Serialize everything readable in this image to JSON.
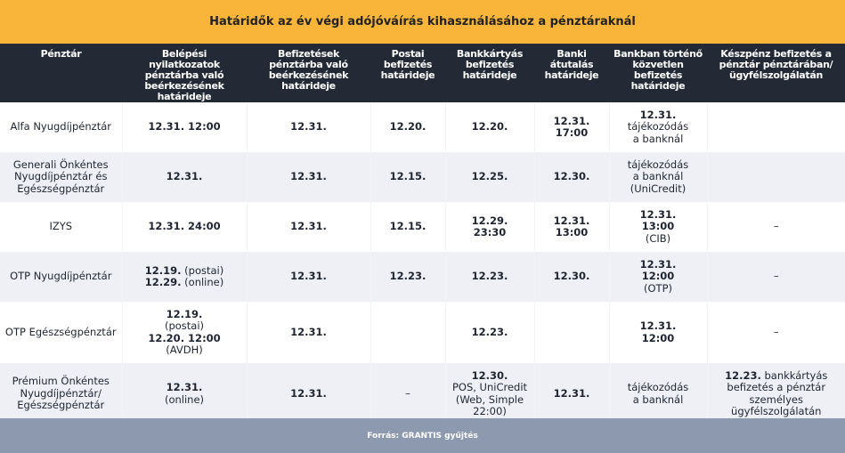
{
  "title": "Határidők az év végi adójóváírás kihasználásához a pénztáraknál",
  "headers": [
    "Pénztár",
    "Belépési nyilatkozatok pénztárba való beérkezésének határideje",
    "Befizetések pénztárba való beérkezésének határideje",
    "Postai befizetés határideje",
    "Bankkártyás befizetés határideje",
    "Banki átutalás határideje",
    "Bankban történő közvetlen befizetés határideje",
    "Készpénz befizetés a pénztár pénztárában/ ügyfélszolgálatán"
  ],
  "rows": [
    {
      "name": [
        "Alfa Nyugdíjpénztár"
      ],
      "entry": [
        "12.31. 12:00"
      ],
      "payment": "12.31.",
      "postal": "12.20.",
      "card": [
        "12.20."
      ],
      "transfer": [
        "12.31. 17:00"
      ],
      "bank": [
        "12.31.",
        "tájékozódás",
        "a banknál"
      ],
      "cash": [
        ""
      ]
    },
    {
      "name": [
        "Generali Önkéntes",
        "Nyugdíjpénztár és",
        "Egészségpénztár"
      ],
      "entry": [
        "12.31."
      ],
      "payment": "12.31.",
      "postal": "12.15.",
      "card": [
        "12.25."
      ],
      "transfer": [
        "12.30."
      ],
      "bank": [
        "tájékozódás",
        "a banknál",
        "(UniCredit)"
      ],
      "cash": [
        ""
      ]
    },
    {
      "name": [
        "IZYS"
      ],
      "entry": [
        "12.31. 24:00"
      ],
      "payment": "12.31.",
      "postal": "12.15.",
      "card": [
        "12.29.",
        "23:30"
      ],
      "transfer": [
        "12.31.",
        "13:00"
      ],
      "bank": [
        "12.31.",
        "13:00",
        "(CIB)"
      ],
      "cash": [
        "–"
      ]
    },
    {
      "name": [
        "OTP Nyugdíjpénztár"
      ],
      "entry": [
        "12.19. (postai)",
        "12.29. (online)"
      ],
      "payment": "12.31.",
      "postal": "12.23.",
      "card": [
        "12.23."
      ],
      "transfer": [
        "12.30."
      ],
      "bank": [
        "12.31.",
        "12:00",
        "(OTP)"
      ],
      "cash": [
        "–"
      ]
    },
    {
      "name": [
        "OTP Egészségpénztár"
      ],
      "entry": [
        "12.19.",
        "(postai)",
        "12.20. 12:00",
        "(AVDH)"
      ],
      "payment": "12.31.",
      "postal": "",
      "card": [
        "12.23."
      ],
      "transfer": [
        ""
      ],
      "bank": [
        "12.31.",
        "12:00"
      ],
      "cash": [
        "–"
      ]
    },
    {
      "name": [
        "Prémium Önkéntes",
        "Nyugdíjpénztár/",
        "Egészségpénztár"
      ],
      "entry": [
        "12.31.",
        "(online)"
      ],
      "payment": "12.31.",
      "postal": "–",
      "card": [
        "12.30.",
        "POS, UniCredit",
        "(Web, Simple",
        "22:00)"
      ],
      "transfer": [
        "12.31."
      ],
      "bank": [
        "tájékozódás",
        "a banknál"
      ],
      "cash": [
        "12.23. bankkártyás",
        "befizetés a pénztár",
        "személyes",
        "ügyfélszolgálatán"
      ]
    }
  ],
  "footer": "Forrás: GRANTIS gyűjtés",
  "colors": {
    "title_bg": "#f8b53a",
    "header_bg": "#232a36",
    "row_alt_bg": "#eef0f5",
    "footer_bg": "#8c99ae"
  }
}
